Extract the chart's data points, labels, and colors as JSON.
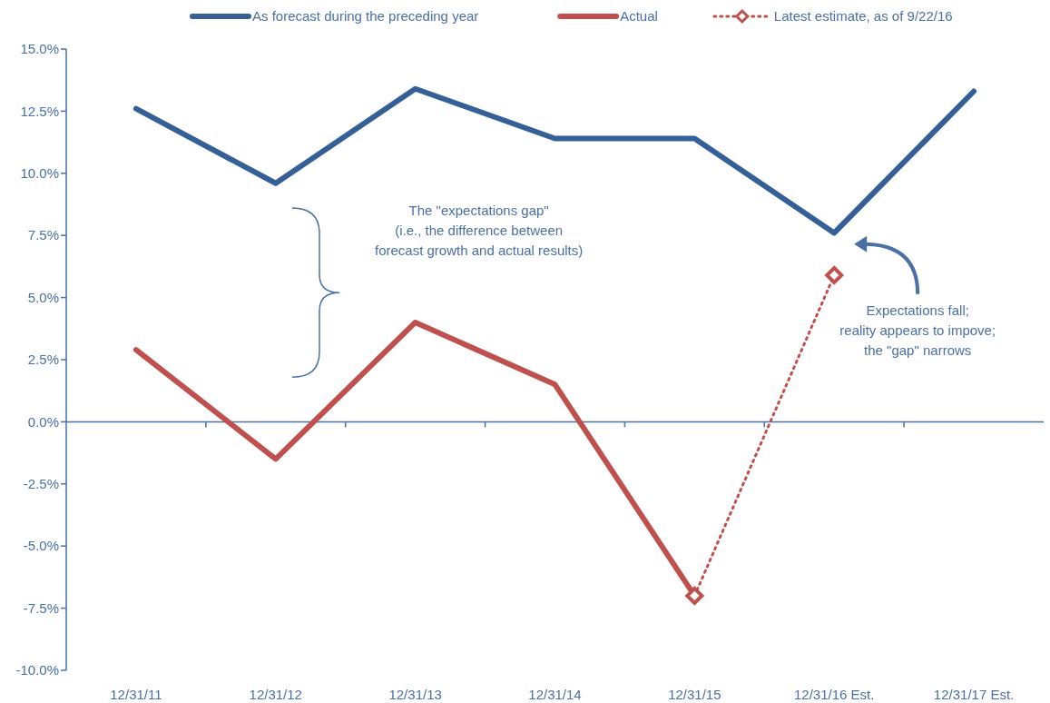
{
  "chart_data": {
    "type": "line",
    "categories": [
      "12/31/11",
      "12/31/12",
      "12/31/13",
      "12/31/14",
      "12/31/15",
      "12/31/16 Est.",
      "12/31/17 Est."
    ],
    "series": [
      {
        "name": "As forecast during the preceding year",
        "color": "#355f97",
        "values": [
          12.6,
          9.6,
          13.4,
          11.4,
          11.4,
          7.6,
          13.3
        ]
      },
      {
        "name": "Actual",
        "color": "#c0504d",
        "values": [
          2.9,
          -1.5,
          4.0,
          1.5,
          -7.0,
          null,
          null
        ]
      },
      {
        "name": "Latest estimate, as of 9/22/16",
        "color": "#c0504d",
        "values": [
          null,
          null,
          null,
          null,
          -7.0,
          5.9,
          null
        ],
        "line_style": "dotted",
        "marker": "diamond"
      }
    ],
    "ylim": [
      -10,
      15
    ],
    "yticks": [
      {
        "value": -10,
        "label": "-10.0%"
      },
      {
        "value": -7.5,
        "label": "-7.5%"
      },
      {
        "value": -5,
        "label": "-5.0%"
      },
      {
        "value": -2.5,
        "label": "-2.5%"
      },
      {
        "value": 0,
        "label": "0.0%"
      },
      {
        "value": 2.5,
        "label": "2.5%"
      },
      {
        "value": 5,
        "label": "5.0%"
      },
      {
        "value": 7.5,
        "label": "7.5%"
      },
      {
        "value": 10,
        "label": "10.0%"
      },
      {
        "value": 12.5,
        "label": "12.5%"
      },
      {
        "value": 15,
        "label": "15.0%"
      }
    ],
    "grid": false,
    "legend": "top",
    "annotations": [
      "The \"expectations gap\"\n(i.e., the difference between\nforecast growth and actual results)",
      "Expectations fall;\nreality appears to impove;\nthe \"gap\" narrows"
    ],
    "ref_lines": [
      {
        "axis": "y",
        "value": 0,
        "color": "#4a70a6"
      }
    ]
  }
}
